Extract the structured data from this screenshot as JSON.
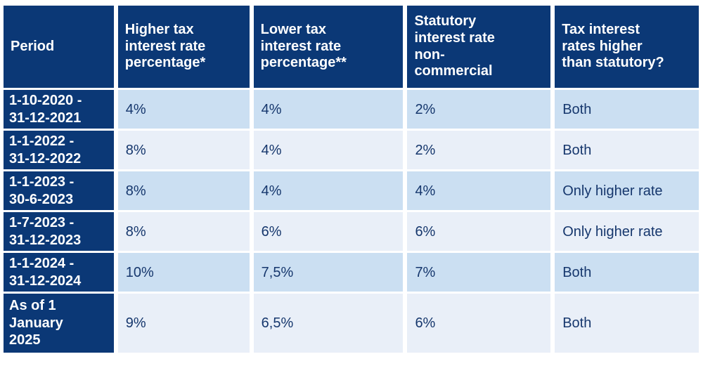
{
  "chart_data": {
    "type": "table",
    "columns": [
      "Period",
      "Higher tax\ninterest rate\npercentage*",
      "Lower tax\ninterest rate\npercentage**",
      "Statutory\ninterest rate\nnon-\ncommercial",
      "Tax interest\nrates higher\nthan statutory?"
    ],
    "rows": [
      {
        "period": "1-10-2020 -\n31-12-2021",
        "higher_rate": "4%",
        "lower_rate": "4%",
        "statutory_rate": "2%",
        "higher_than_statutory": "Both"
      },
      {
        "period": "1-1-2022 -\n31-12-2022",
        "higher_rate": "8%",
        "lower_rate": "4%",
        "statutory_rate": "2%",
        "higher_than_statutory": "Both"
      },
      {
        "period": "1-1-2023 -\n30-6-2023",
        "higher_rate": "8%",
        "lower_rate": "4%",
        "statutory_rate": "4%",
        "higher_than_statutory": "Only higher rate"
      },
      {
        "period": "1-7-2023 -\n31-12-2023",
        "higher_rate": "8%",
        "lower_rate": "6%",
        "statutory_rate": "6%",
        "higher_than_statutory": "Only higher rate"
      },
      {
        "period": "1-1-2024 -\n31-12-2024",
        "higher_rate": "10%",
        "lower_rate": "7,5%",
        "statutory_rate": "7%",
        "higher_than_statutory": "Both"
      },
      {
        "period": "As of 1\nJanuary\n2025",
        "higher_rate": "9%",
        "lower_rate": "6,5%",
        "statutory_rate": "6%",
        "higher_than_statutory": "Both"
      }
    ],
    "layout": {
      "grid": "white gaps between cells",
      "legend": "none",
      "title": ""
    }
  },
  "colors": {
    "header_bg": "#0b3876",
    "period_column_bg": "#0b3876",
    "row_alt_light_blue": "#cbdff2",
    "row_alt_pale_blue": "#e9eff8",
    "header_text": "#ffffff",
    "data_text": "#16376d",
    "background": "#ffffff"
  }
}
